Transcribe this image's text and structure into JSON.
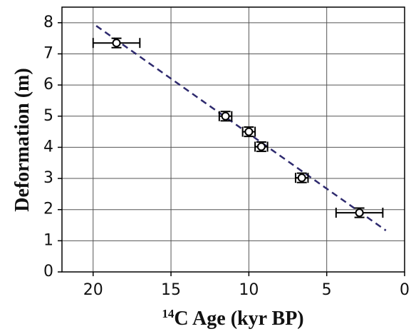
{
  "chart_data": {
    "type": "scatter",
    "xlabel_sup": "14",
    "xlabel": "C Age (kyr BP)",
    "ylabel": "Deformation (m)",
    "x": [
      18.5,
      11.5,
      10.0,
      9.2,
      6.6,
      2.9
    ],
    "series": [
      {
        "color": "#000000",
        "values": [
          7.35,
          5.0,
          4.5,
          4.02,
          3.02,
          1.9
        ],
        "xerr": [
          1.5,
          0.4,
          0.4,
          0.4,
          0.4,
          1.5
        ],
        "yerr": [
          0.15,
          0.15,
          0.15,
          0.15,
          0.15,
          0.15
        ]
      }
    ],
    "trendline": {
      "x": [
        19.8,
        1.2
      ],
      "y": [
        7.9,
        1.33
      ],
      "color": "#2e2a6e"
    },
    "xlim": [
      22,
      0
    ],
    "ylim": [
      0,
      8.5
    ],
    "xticks": [
      20,
      15,
      10,
      5,
      0
    ],
    "yticks": [
      0,
      1,
      2,
      3,
      4,
      5,
      6,
      7,
      8
    ],
    "grid": true
  }
}
